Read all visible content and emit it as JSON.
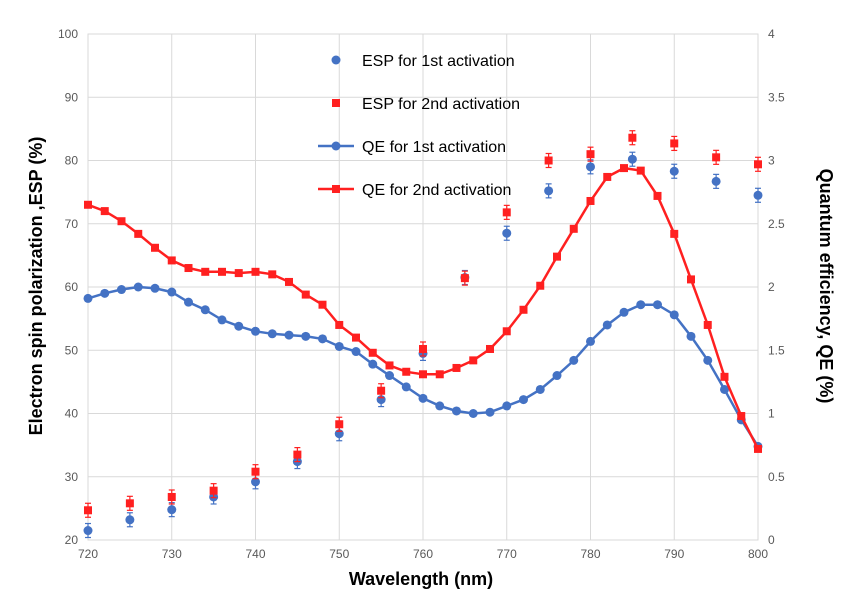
{
  "chart_data": {
    "type": "scatter",
    "xlabel": "Wavelength (nm)",
    "ylabel_left": "Electron spin polarization ,ESP (%)",
    "ylabel_right": "Quantum efficiency, QE (%)",
    "xlim": [
      720,
      800
    ],
    "ylim_left": [
      20,
      100
    ],
    "ylim_right": [
      0,
      4
    ],
    "x_ticks": [
      "720",
      "730",
      "740",
      "750",
      "760",
      "770",
      "780",
      "790",
      "800"
    ],
    "y_left_ticks": [
      "20",
      "30",
      "40",
      "50",
      "60",
      "70",
      "80",
      "90",
      "100"
    ],
    "y_right_ticks": [
      "0",
      "0.5",
      "1",
      "1.5",
      "2",
      "2.5",
      "3",
      "3.5",
      "4"
    ],
    "grid": true,
    "legend_position": "top-center",
    "series": [
      {
        "name": "ESP for 1st activation",
        "kind": "points",
        "axis": "left",
        "marker": "circle",
        "color": "#4472c4",
        "points": [
          [
            720,
            21.5
          ],
          [
            725,
            23.2
          ],
          [
            730,
            24.8
          ],
          [
            735,
            26.8
          ],
          [
            740,
            29.2
          ],
          [
            745,
            32.4
          ],
          [
            750,
            36.8
          ],
          [
            755,
            42.2
          ],
          [
            760,
            49.5
          ],
          [
            765,
            61.5
          ],
          [
            770,
            68.5
          ],
          [
            775,
            75.2
          ],
          [
            780,
            79.0
          ],
          [
            785,
            80.2
          ],
          [
            790,
            78.3
          ],
          [
            795,
            76.7
          ],
          [
            800,
            74.5
          ]
        ]
      },
      {
        "name": "ESP for 2nd activation",
        "kind": "points",
        "axis": "left",
        "marker": "square",
        "color": "#ff2020",
        "points": [
          [
            720,
            24.7
          ],
          [
            725,
            25.8
          ],
          [
            730,
            26.8
          ],
          [
            735,
            27.8
          ],
          [
            740,
            30.8
          ],
          [
            745,
            33.5
          ],
          [
            750,
            38.3
          ],
          [
            755,
            43.6
          ],
          [
            760,
            50.2
          ],
          [
            765,
            61.4
          ],
          [
            770,
            71.8
          ],
          [
            775,
            80.0
          ],
          [
            780,
            81.0
          ],
          [
            785,
            83.6
          ],
          [
            790,
            82.7
          ],
          [
            795,
            80.5
          ],
          [
            800,
            79.4
          ]
        ]
      },
      {
        "name": "QE for 1st activation",
        "kind": "line",
        "axis": "right",
        "marker": "circle",
        "color": "#4472c4",
        "points": [
          [
            720,
            1.91
          ],
          [
            722,
            1.95
          ],
          [
            724,
            1.98
          ],
          [
            726,
            2.0
          ],
          [
            728,
            1.99
          ],
          [
            730,
            1.96
          ],
          [
            732,
            1.88
          ],
          [
            734,
            1.82
          ],
          [
            736,
            1.74
          ],
          [
            738,
            1.69
          ],
          [
            740,
            1.65
          ],
          [
            742,
            1.63
          ],
          [
            744,
            1.62
          ],
          [
            746,
            1.61
          ],
          [
            748,
            1.59
          ],
          [
            750,
            1.53
          ],
          [
            752,
            1.49
          ],
          [
            754,
            1.39
          ],
          [
            756,
            1.3
          ],
          [
            758,
            1.21
          ],
          [
            760,
            1.12
          ],
          [
            762,
            1.06
          ],
          [
            764,
            1.02
          ],
          [
            766,
            1.0
          ],
          [
            768,
            1.01
          ],
          [
            770,
            1.06
          ],
          [
            772,
            1.11
          ],
          [
            774,
            1.19
          ],
          [
            776,
            1.3
          ],
          [
            778,
            1.42
          ],
          [
            780,
            1.57
          ],
          [
            782,
            1.7
          ],
          [
            784,
            1.8
          ],
          [
            786,
            1.86
          ],
          [
            788,
            1.86
          ],
          [
            790,
            1.78
          ],
          [
            792,
            1.61
          ],
          [
            794,
            1.42
          ],
          [
            796,
            1.19
          ],
          [
            798,
            0.95
          ],
          [
            800,
            0.74
          ]
        ]
      },
      {
        "name": "QE for 2nd activation",
        "kind": "line",
        "axis": "right",
        "marker": "square",
        "color": "#ff2020",
        "points": [
          [
            720,
            2.65
          ],
          [
            722,
            2.6
          ],
          [
            724,
            2.52
          ],
          [
            726,
            2.42
          ],
          [
            728,
            2.31
          ],
          [
            730,
            2.21
          ],
          [
            732,
            2.15
          ],
          [
            734,
            2.12
          ],
          [
            736,
            2.12
          ],
          [
            738,
            2.11
          ],
          [
            740,
            2.12
          ],
          [
            742,
            2.1
          ],
          [
            744,
            2.04
          ],
          [
            746,
            1.94
          ],
          [
            748,
            1.86
          ],
          [
            750,
            1.7
          ],
          [
            752,
            1.6
          ],
          [
            754,
            1.48
          ],
          [
            756,
            1.38
          ],
          [
            758,
            1.33
          ],
          [
            760,
            1.31
          ],
          [
            762,
            1.31
          ],
          [
            764,
            1.36
          ],
          [
            766,
            1.42
          ],
          [
            768,
            1.51
          ],
          [
            770,
            1.65
          ],
          [
            772,
            1.82
          ],
          [
            774,
            2.01
          ],
          [
            776,
            2.24
          ],
          [
            778,
            2.46
          ],
          [
            780,
            2.68
          ],
          [
            782,
            2.87
          ],
          [
            784,
            2.94
          ],
          [
            786,
            2.92
          ],
          [
            788,
            2.72
          ],
          [
            790,
            2.42
          ],
          [
            792,
            2.06
          ],
          [
            794,
            1.7
          ],
          [
            796,
            1.29
          ],
          [
            798,
            0.98
          ],
          [
            800,
            0.72
          ]
        ]
      }
    ]
  }
}
